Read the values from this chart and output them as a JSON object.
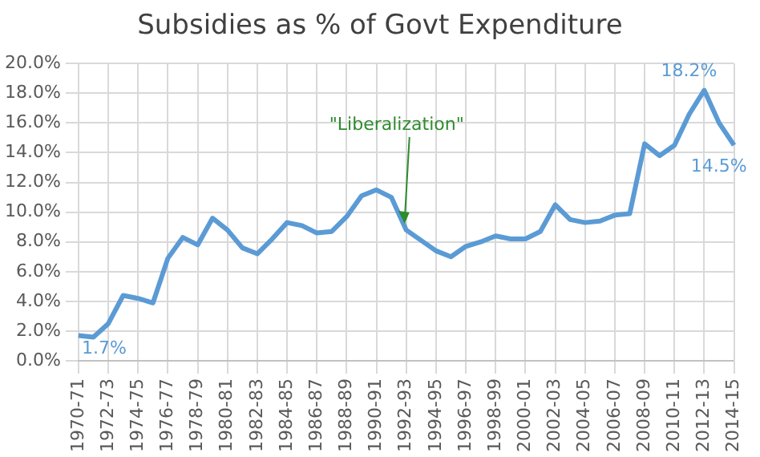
{
  "chart_data": {
    "type": "line",
    "title": "Subsidies as % of Govt Expenditure",
    "categories": [
      "1970-71",
      null,
      "1972-73",
      null,
      "1974-75",
      null,
      "1976-77",
      null,
      "1978-79",
      null,
      "1980-81",
      null,
      "1982-83",
      null,
      "1984-85",
      null,
      "1986-87",
      null,
      "1988-89",
      null,
      "1990-91",
      null,
      "1992-93",
      null,
      "1994-95",
      null,
      "1996-97",
      null,
      "1998-99",
      null,
      "2000-01",
      null,
      "2002-03",
      null,
      "2004-05",
      null,
      "2006-07",
      null,
      "2008-09",
      null,
      "2010-11",
      null,
      "2012-13",
      null,
      "2014-15"
    ],
    "series": [
      {
        "color": "#5b9bd5",
        "values": [
          1.7,
          1.6,
          2.5,
          4.4,
          4.2,
          3.9,
          6.9,
          8.3,
          7.8,
          9.6,
          8.8,
          7.6,
          7.2,
          8.2,
          9.3,
          9.1,
          8.6,
          8.7,
          9.7,
          11.1,
          11.5,
          11.0,
          8.8,
          8.1,
          7.4,
          7.0,
          7.7,
          8.0,
          8.4,
          8.2,
          8.2,
          8.7,
          10.5,
          9.5,
          9.3,
          9.4,
          9.8,
          9.9,
          14.6,
          13.8,
          14.5,
          16.6,
          18.2,
          16.0,
          14.5
        ],
        "value_labels": [
          "1.7%",
          null,
          null,
          null,
          null,
          null,
          null,
          null,
          null,
          null,
          null,
          null,
          null,
          null,
          null,
          null,
          null,
          null,
          null,
          null,
          null,
          null,
          null,
          null,
          null,
          null,
          null,
          null,
          null,
          null,
          null,
          null,
          null,
          null,
          null,
          null,
          null,
          null,
          null,
          null,
          null,
          null,
          "18.2%",
          null,
          "14.5%"
        ]
      }
    ],
    "ylim": [
      0,
      20
    ],
    "yticks": [
      {
        "value": 0,
        "label": "0.0%"
      },
      {
        "value": 2,
        "label": "2.0%"
      },
      {
        "value": 4,
        "label": "4.0%"
      },
      {
        "value": 6,
        "label": "6.0%"
      },
      {
        "value": 8,
        "label": "8.0%"
      },
      {
        "value": 10,
        "label": "10.0%"
      },
      {
        "value": 12,
        "label": "12.0%"
      },
      {
        "value": 14,
        "label": "14.0%"
      },
      {
        "value": 16,
        "label": "16.0%"
      },
      {
        "value": 18,
        "label": "18.0%"
      },
      {
        "value": 20,
        "label": "20.0%"
      }
    ],
    "annotations": [
      {
        "text": "\"Liberalization\"",
        "x": "1992-93",
        "y": 8.8
      }
    ],
    "grid": true,
    "legend": false,
    "marker": "none",
    "line_style": "solid"
  }
}
